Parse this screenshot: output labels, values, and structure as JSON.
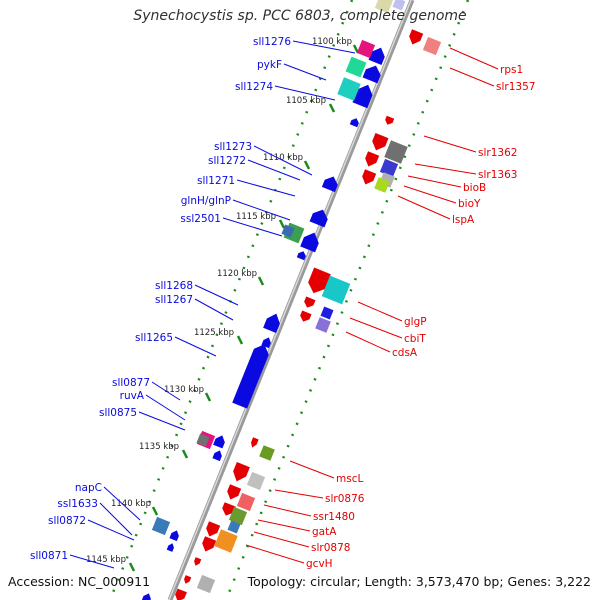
{
  "title": "Synechocystis sp. PCC 6803, complete genome",
  "accession_text": "Accession: NC_000911",
  "topology_text": "Topology: circular; Length: 3,573,470 bp; Genes: 3,222",
  "colors": {
    "forward": "#e40000",
    "reverse": "#0a0ae0",
    "backbone": "#999999",
    "ticks": "#1a8a1a"
  },
  "ticks": [
    "1100 kbp",
    "1105 kbp",
    "1110 kbp",
    "1115 kbp",
    "1120 kbp",
    "1125 kbp",
    "1130 kbp",
    "1135 kbp",
    "1140 kbp",
    "1145 kbp"
  ],
  "left_genes": [
    "sll1276",
    "pykF",
    "sll1274",
    "sll1273",
    "sll1272",
    "sll1271",
    "glnH/glnP",
    "ssl2501",
    "sll1268",
    "sll1267",
    "sll1265",
    "sll0877",
    "ruvA",
    "sll0875",
    "napC",
    "ssl1633",
    "sll0872",
    "sll0871"
  ],
  "right_genes": [
    "rps1",
    "slr1357",
    "slr1362",
    "slr1363",
    "bioB",
    "bioY",
    "lspA",
    "glgP",
    "cbiT",
    "cdsA",
    "mscL",
    "slr0876",
    "ssr1480",
    "gatA",
    "slr0878",
    "gcvH"
  ]
}
